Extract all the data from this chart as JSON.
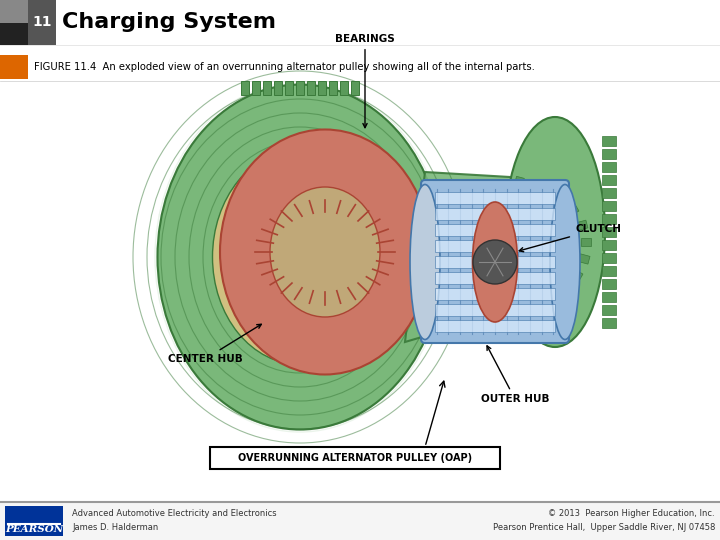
{
  "title_number": "11",
  "title_text": "Charging System",
  "caption": "FIGURE 11.4  An exploded view of an overrunning alternator pulley showing all of the internal parts.",
  "footer_left_line1": "Advanced Automotive Electricity and Electronics",
  "footer_left_line2": "James D. Halderman",
  "footer_right_line1": "© 2013  Pearson Higher Education, Inc.",
  "footer_right_line2": "Pearson Prentice Hall,  Upper Saddle River, NJ 07458",
  "footer_brand": "PEARSON",
  "bg_color": "#ffffff",
  "header_bar_color": "#555555",
  "header_number_color": "#ffffff",
  "title_color": "#000000",
  "caption_color": "#000000",
  "green_outer": "#7ab87a",
  "green_dark": "#3a7a3a",
  "green_mid": "#5a9a5a",
  "red_hub": "#cc7766",
  "red_dark": "#aa4433",
  "blue_clutch": "#99bbdd",
  "blue_dark": "#4477aa",
  "blue_stripe": "#6699cc",
  "tan_inner": "#c8b870",
  "footer_bg": "#f0f0f0"
}
